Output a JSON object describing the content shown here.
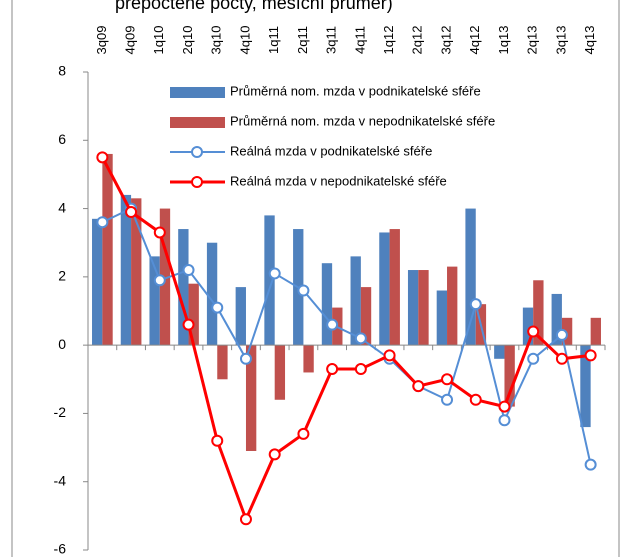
{
  "chart_data": {
    "type": "bar_line",
    "title": "přepočtené počty, měsíční průměr)",
    "categories": [
      "3q09",
      "4q09",
      "1q10",
      "2q10",
      "3q10",
      "4q10",
      "1q11",
      "2q11",
      "3q11",
      "4q11",
      "1q12",
      "2q12",
      "3q12",
      "4q12",
      "1q13",
      "2q13",
      "3q13",
      "4q13"
    ],
    "series": [
      {
        "name": "Průměrná nom. mzda v podnikatelské sféře",
        "kind": "bar",
        "color": "#4f81bd",
        "values": [
          3.7,
          4.4,
          2.6,
          3.4,
          3.0,
          1.7,
          3.8,
          3.4,
          2.4,
          2.6,
          3.3,
          2.2,
          1.6,
          4.0,
          -0.4,
          1.1,
          1.5,
          -2.4
        ]
      },
      {
        "name": "Průměrná nom. mzda v nepodnikatelské sféře",
        "kind": "bar",
        "color": "#c0504d",
        "values": [
          5.6,
          4.3,
          4.0,
          1.8,
          -1.0,
          -3.1,
          -1.6,
          -0.8,
          1.1,
          1.7,
          3.4,
          2.2,
          2.3,
          1.2,
          -1.8,
          1.9,
          0.8,
          0.8
        ]
      },
      {
        "name": "Reálná mzda v podnikatelské sféře",
        "kind": "line",
        "color": "#558ed5",
        "values": [
          3.6,
          4.0,
          1.9,
          2.2,
          1.1,
          -0.4,
          2.1,
          1.6,
          0.6,
          0.2,
          -0.4,
          -1.2,
          -1.6,
          1.2,
          -2.2,
          -0.4,
          0.3,
          -3.5
        ]
      },
      {
        "name": "Reálná mzda v nepodnikatelské sféře",
        "kind": "line",
        "color": "#ff0000",
        "values": [
          5.5,
          3.9,
          3.3,
          0.6,
          -2.8,
          -5.1,
          -3.2,
          -2.6,
          -0.7,
          -0.7,
          -0.3,
          -1.2,
          -1.0,
          -1.6,
          -1.8,
          0.4,
          -0.4,
          -0.3
        ]
      }
    ],
    "ylim": [
      -6,
      8
    ],
    "yticks": [
      -6,
      -4,
      -2,
      0,
      2,
      4,
      6,
      8
    ],
    "grid": false,
    "legend": "top"
  }
}
